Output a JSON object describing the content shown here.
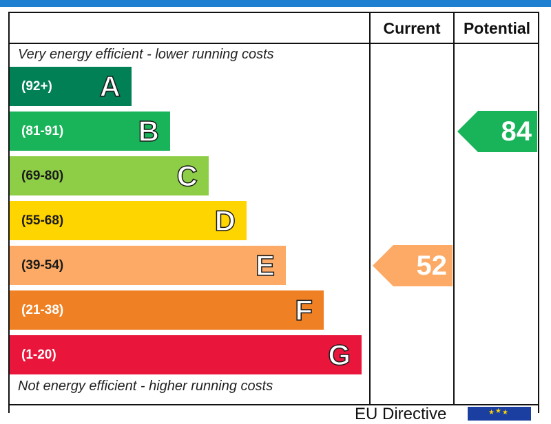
{
  "chart_data": {
    "type": "bar",
    "columns": {
      "current": "Current",
      "potential": "Potential"
    },
    "top_caption": "Very energy efficient - lower running costs",
    "bottom_caption": "Not energy efficient - higher running costs",
    "bands": [
      {
        "letter": "A",
        "range": "(92+)",
        "color": "#008054"
      },
      {
        "letter": "B",
        "range": "(81-91)",
        "color": "#19b459"
      },
      {
        "letter": "C",
        "range": "(69-80)",
        "color": "#8dce46"
      },
      {
        "letter": "D",
        "range": "(55-68)",
        "color": "#ffd500"
      },
      {
        "letter": "E",
        "range": "(39-54)",
        "color": "#fcaa65"
      },
      {
        "letter": "F",
        "range": "(21-38)",
        "color": "#ef8023"
      },
      {
        "letter": "G",
        "range": "(1-20)",
        "color": "#e9153b"
      }
    ],
    "current": {
      "value": "52",
      "band": "E",
      "color": "#fcaa65"
    },
    "potential": {
      "value": "84",
      "band": "B",
      "color": "#19b459"
    }
  },
  "footer": {
    "text": "EU Directive"
  }
}
